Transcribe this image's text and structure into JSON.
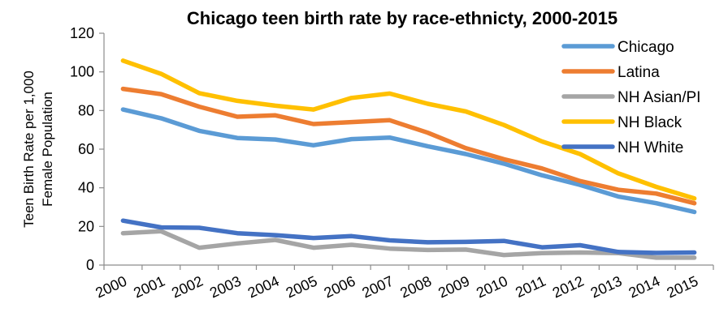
{
  "chart_data": {
    "type": "line",
    "title": "Chicago teen birth rate by race-ethnicty, 2000-2015",
    "ylabel_lines": [
      "Teen Birth Rate per 1,000",
      "Female Population"
    ],
    "xlabel": "",
    "categories": [
      "2000",
      "2001",
      "2002",
      "2003",
      "2004",
      "2005",
      "2006",
      "2007",
      "2008",
      "2009",
      "2010",
      "2011",
      "2012",
      "2013",
      "2014",
      "2015"
    ],
    "ylim": [
      0,
      120
    ],
    "yticks": [
      0,
      20,
      40,
      60,
      80,
      100,
      120
    ],
    "grid": false,
    "legend": "top-right",
    "series": [
      {
        "name": "Chicago",
        "color": "#5B9BD5",
        "values": [
          80.5,
          76,
          69.5,
          65.8,
          65,
          62,
          65.2,
          66,
          61.5,
          57.5,
          52.5,
          46.5,
          41.5,
          35.5,
          32,
          27.5
        ]
      },
      {
        "name": "Latina",
        "color": "#ED7D31",
        "values": [
          91.2,
          88.5,
          82,
          76.8,
          77.5,
          73,
          74,
          75,
          68.5,
          60.5,
          54.8,
          50,
          43.5,
          39,
          37,
          32
        ]
      },
      {
        "name": "NH Asian/PI",
        "color": "#A5A5A5",
        "values": [
          16.5,
          17.5,
          9,
          11.2,
          13,
          9,
          10.5,
          8.5,
          7.8,
          8,
          5.2,
          6.2,
          6.5,
          6.2,
          3.8,
          3.8
        ]
      },
      {
        "name": "NH Black",
        "color": "#FFC000",
        "values": [
          105.8,
          99,
          89,
          85,
          82.5,
          80.5,
          86.5,
          88.8,
          83.5,
          79.5,
          72.5,
          64,
          57.5,
          47.5,
          40.5,
          34.5
        ]
      },
      {
        "name": "NH White",
        "color": "#4472C4",
        "values": [
          23,
          19.5,
          19.3,
          16.5,
          15.5,
          14,
          15,
          12.8,
          11.8,
          12,
          12.5,
          9.2,
          10.3,
          6.8,
          6.3,
          6.5
        ]
      }
    ]
  }
}
